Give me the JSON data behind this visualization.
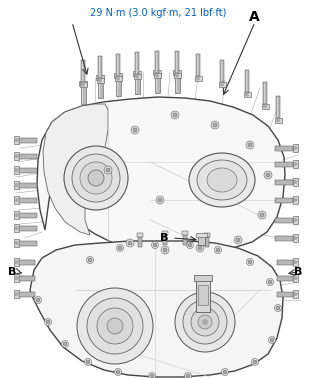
{
  "bg_color": "#ffffff",
  "torque_text": "29 N·m (3.0 kgf·m, 21 lbf·ft)",
  "torque_color": "#0060c0",
  "label_A": "A",
  "label_B": "B",
  "label_color": "#000000",
  "line_color": "#888888",
  "housing_edge": "#444444",
  "housing_face": "#f8f8f8",
  "bolt_body": "#b8b8b8",
  "bolt_head": "#d8d8d8",
  "bolt_edge": "#555555",
  "fig_width": 3.1,
  "fig_height": 3.78,
  "dpi": 100
}
